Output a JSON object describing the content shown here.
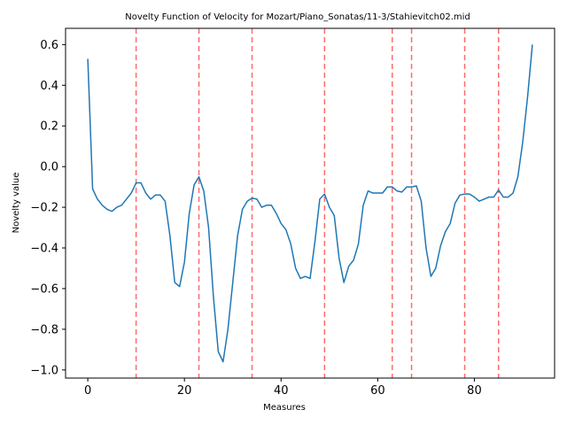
{
  "chart_data": {
    "type": "line",
    "title": "Novelty Function of Velocity for Mozart/Piano_Sonatas/11-3/Stahievitch02.mid",
    "xlabel": "Measures",
    "ylabel": "Novelty value",
    "xlim": [
      -4.6,
      96.6
    ],
    "ylim": [
      -1.04,
      0.68
    ],
    "x_ticks": [
      0,
      20,
      40,
      60,
      80
    ],
    "y_ticks": [
      -1.0,
      -0.8,
      -0.6,
      -0.4,
      -0.2,
      0.0,
      0.2,
      0.4,
      0.6
    ],
    "x_tick_labels": [
      "0",
      "20",
      "40",
      "60",
      "80"
    ],
    "y_tick_labels": [
      "−1.0",
      "−0.8",
      "−0.6",
      "−0.4",
      "−0.2",
      "0.0",
      "0.2",
      "0.4",
      "0.6"
    ],
    "grid": false,
    "series": [
      {
        "color": "#1f77b4",
        "x": [
          0,
          1,
          2,
          3,
          4,
          5,
          6,
          7,
          8,
          9,
          10,
          11,
          12,
          13,
          14,
          15,
          16,
          17,
          18,
          19,
          20,
          21,
          22,
          23,
          24,
          25,
          26,
          27,
          28,
          29,
          30,
          31,
          32,
          33,
          34,
          35,
          36,
          37,
          38,
          39,
          40,
          41,
          42,
          43,
          44,
          45,
          46,
          47,
          48,
          49,
          50,
          51,
          52,
          53,
          54,
          55,
          56,
          57,
          58,
          59,
          60,
          61,
          62,
          63,
          64,
          65,
          66,
          67,
          68,
          69,
          70,
          71,
          72,
          73,
          74,
          75,
          76,
          77,
          78,
          79,
          80,
          81,
          82,
          83,
          84,
          85,
          86,
          87,
          88,
          89,
          90,
          91,
          92
        ],
        "y": [
          0.53,
          -0.11,
          -0.16,
          -0.19,
          -0.21,
          -0.22,
          -0.2,
          -0.19,
          -0.16,
          -0.13,
          -0.08,
          -0.08,
          -0.13,
          -0.16,
          -0.14,
          -0.14,
          -0.17,
          -0.34,
          -0.57,
          -0.59,
          -0.47,
          -0.23,
          -0.09,
          -0.05,
          -0.12,
          -0.3,
          -0.64,
          -0.91,
          -0.96,
          -0.8,
          -0.57,
          -0.34,
          -0.21,
          -0.17,
          -0.155,
          -0.16,
          -0.2,
          -0.19,
          -0.19,
          -0.23,
          -0.28,
          -0.31,
          -0.38,
          -0.5,
          -0.55,
          -0.54,
          -0.55,
          -0.37,
          -0.16,
          -0.135,
          -0.2,
          -0.24,
          -0.45,
          -0.57,
          -0.49,
          -0.46,
          -0.38,
          -0.19,
          -0.12,
          -0.13,
          -0.13,
          -0.13,
          -0.1,
          -0.1,
          -0.12,
          -0.125,
          -0.1,
          -0.1,
          -0.095,
          -0.17,
          -0.4,
          -0.54,
          -0.5,
          -0.39,
          -0.32,
          -0.28,
          -0.18,
          -0.14,
          -0.135,
          -0.135,
          -0.15,
          -0.17,
          -0.16,
          -0.15,
          -0.15,
          -0.115,
          -0.15,
          -0.15,
          -0.13,
          -0.05,
          0.12,
          0.34,
          0.6
        ]
      }
    ],
    "boundaries": {
      "color": "#ff6b6b",
      "style": "dashed",
      "x": [
        10,
        23,
        34,
        49,
        63,
        67,
        78,
        85
      ]
    }
  }
}
